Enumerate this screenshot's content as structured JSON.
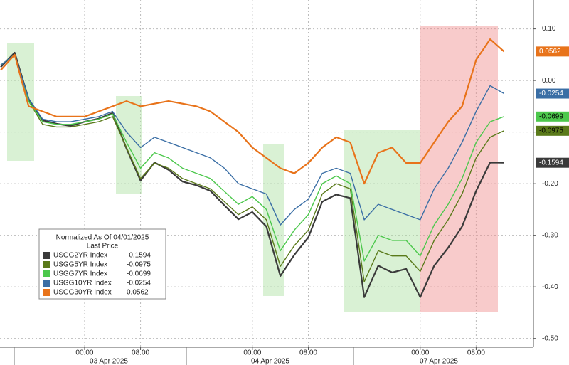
{
  "chart_data": {
    "type": "line",
    "legend_title": "Normalized As Of 04/01/2025",
    "legend_subtitle": "Last Price",
    "x": [
      -12,
      -10,
      -8,
      -6,
      -4,
      -2,
      0,
      2,
      4,
      6,
      8,
      10,
      12,
      14,
      16,
      18,
      20,
      22,
      24,
      26,
      28,
      30,
      32,
      34,
      36,
      38,
      40,
      42,
      44,
      46,
      48,
      50,
      52,
      54,
      56,
      58,
      60
    ],
    "xlim": [
      -12.1,
      64.2
    ],
    "xticks": [
      {
        "value": 0,
        "label": "00:00"
      },
      {
        "value": 8,
        "label": "08:00"
      },
      {
        "value": 24,
        "label": "00:00"
      },
      {
        "value": 32,
        "label": "08:00"
      },
      {
        "value": 48,
        "label": "00:00"
      },
      {
        "value": 56,
        "label": "08:00"
      }
    ],
    "date_labels": [
      "03 Apr 2025",
      "04 Apr 2025",
      "07 Apr 2025"
    ],
    "ylim": [
      -0.517,
      0.156
    ],
    "yticks": [
      {
        "value": 0.1,
        "label": "0.10"
      },
      {
        "value": 0,
        "label": "0.00"
      },
      {
        "value": -0.1,
        "label": "-0.10"
      },
      {
        "value": -0.2,
        "label": "-0.20"
      },
      {
        "value": -0.3,
        "label": "-0.30"
      },
      {
        "value": -0.4,
        "label": "-0.40"
      },
      {
        "value": -0.5,
        "label": "-0.50"
      }
    ],
    "grid": true,
    "series": [
      {
        "name": "USGG2YR Index",
        "color": "#3a3a3a",
        "last_value": -0.1594,
        "values": [
          0.026,
          0.054,
          -0.036,
          -0.077,
          -0.084,
          -0.088,
          -0.08,
          -0.074,
          -0.063,
          -0.132,
          -0.194,
          -0.159,
          -0.173,
          -0.196,
          -0.203,
          -0.214,
          -0.242,
          -0.269,
          -0.255,
          -0.283,
          -0.379,
          -0.338,
          -0.304,
          -0.235,
          -0.221,
          -0.228,
          -0.42,
          -0.359,
          -0.372,
          -0.365,
          -0.42,
          -0.359,
          -0.324,
          -0.283,
          -0.214,
          -0.159,
          -0.1594
        ]
      },
      {
        "name": "USGG5YR Index",
        "color": "#5a7a1a",
        "last_value": -0.0975,
        "values": [
          0.03,
          0.05,
          -0.04,
          -0.085,
          -0.09,
          -0.09,
          -0.085,
          -0.08,
          -0.07,
          -0.13,
          -0.19,
          -0.16,
          -0.17,
          -0.19,
          -0.2,
          -0.21,
          -0.235,
          -0.26,
          -0.245,
          -0.27,
          -0.36,
          -0.32,
          -0.29,
          -0.22,
          -0.2,
          -0.21,
          -0.39,
          -0.33,
          -0.34,
          -0.34,
          -0.37,
          -0.31,
          -0.27,
          -0.22,
          -0.15,
          -0.11,
          -0.0975
        ]
      },
      {
        "name": "USGG7YR Index",
        "color": "#4cc84c",
        "last_value": -0.0699,
        "values": [
          0.03,
          0.05,
          -0.04,
          -0.08,
          -0.085,
          -0.085,
          -0.08,
          -0.075,
          -0.065,
          -0.12,
          -0.17,
          -0.14,
          -0.15,
          -0.17,
          -0.18,
          -0.19,
          -0.215,
          -0.24,
          -0.225,
          -0.25,
          -0.33,
          -0.29,
          -0.26,
          -0.2,
          -0.185,
          -0.2,
          -0.35,
          -0.3,
          -0.31,
          -0.31,
          -0.34,
          -0.28,
          -0.24,
          -0.19,
          -0.12,
          -0.08,
          -0.0699
        ]
      },
      {
        "name": "USGG10YR Index",
        "color": "#3a6ea5",
        "last_value": -0.0254,
        "values": [
          0.03,
          0.05,
          -0.035,
          -0.075,
          -0.08,
          -0.08,
          -0.075,
          -0.07,
          -0.06,
          -0.1,
          -0.13,
          -0.11,
          -0.12,
          -0.13,
          -0.14,
          -0.15,
          -0.17,
          -0.2,
          -0.21,
          -0.22,
          -0.28,
          -0.25,
          -0.23,
          -0.18,
          -0.17,
          -0.18,
          -0.27,
          -0.24,
          -0.25,
          -0.26,
          -0.27,
          -0.21,
          -0.17,
          -0.12,
          -0.06,
          -0.01,
          -0.0254
        ]
      },
      {
        "name": "USGG30YR Index",
        "color": "#e8731a",
        "last_value": 0.0562,
        "values": [
          0.02,
          0.05,
          -0.05,
          -0.06,
          -0.07,
          -0.07,
          -0.07,
          -0.06,
          -0.05,
          -0.04,
          -0.05,
          -0.045,
          -0.04,
          -0.045,
          -0.05,
          -0.06,
          -0.08,
          -0.1,
          -0.13,
          -0.15,
          -0.17,
          -0.18,
          -0.16,
          -0.13,
          -0.11,
          -0.12,
          -0.2,
          -0.14,
          -0.13,
          -0.16,
          -0.16,
          -0.12,
          -0.08,
          -0.05,
          0.04,
          0.08,
          0.0562
        ]
      }
    ]
  }
}
